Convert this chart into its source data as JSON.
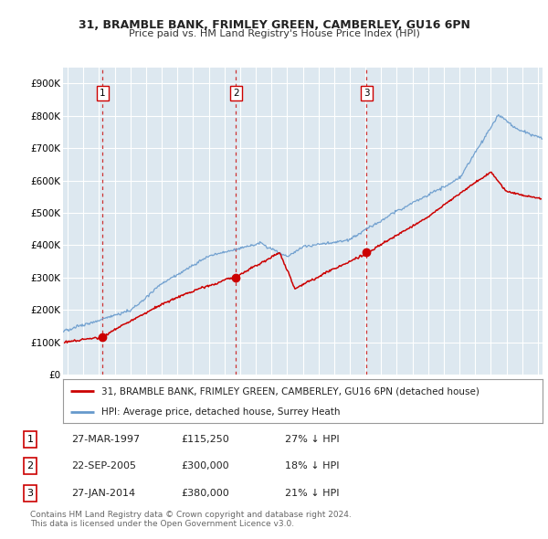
{
  "title1": "31, BRAMBLE BANK, FRIMLEY GREEN, CAMBERLEY, GU16 6PN",
  "title2": "Price paid vs. HM Land Registry's House Price Index (HPI)",
  "ylim": [
    0,
    950000
  ],
  "yticks": [
    0,
    100000,
    200000,
    300000,
    400000,
    500000,
    600000,
    700000,
    800000,
    900000
  ],
  "ytick_labels": [
    "£0",
    "£100K",
    "£200K",
    "£300K",
    "£400K",
    "£500K",
    "£600K",
    "£700K",
    "£800K",
    "£900K"
  ],
  "xlim_start": 1994.7,
  "xlim_end": 2025.3,
  "sale_dates": [
    1997.23,
    2005.72,
    2014.07
  ],
  "sale_prices": [
    115250,
    300000,
    380000
  ],
  "sale_labels": [
    "1",
    "2",
    "3"
  ],
  "red_line_color": "#cc0000",
  "blue_line_color": "#6699cc",
  "vline_color": "#cc3333",
  "marker_color": "#cc0000",
  "bg_color": "#dde8f0",
  "grid_color": "#ffffff",
  "legend_label_red": "31, BRAMBLE BANK, FRIMLEY GREEN, CAMBERLEY, GU16 6PN (detached house)",
  "legend_label_blue": "HPI: Average price, detached house, Surrey Heath",
  "table_rows": [
    [
      "1",
      "27-MAR-1997",
      "£115,250",
      "27% ↓ HPI"
    ],
    [
      "2",
      "22-SEP-2005",
      "£300,000",
      "18% ↓ HPI"
    ],
    [
      "3",
      "27-JAN-2014",
      "£380,000",
      "21% ↓ HPI"
    ]
  ],
  "footnote1": "Contains HM Land Registry data © Crown copyright and database right 2024.",
  "footnote2": "This data is licensed under the Open Government Licence v3.0."
}
